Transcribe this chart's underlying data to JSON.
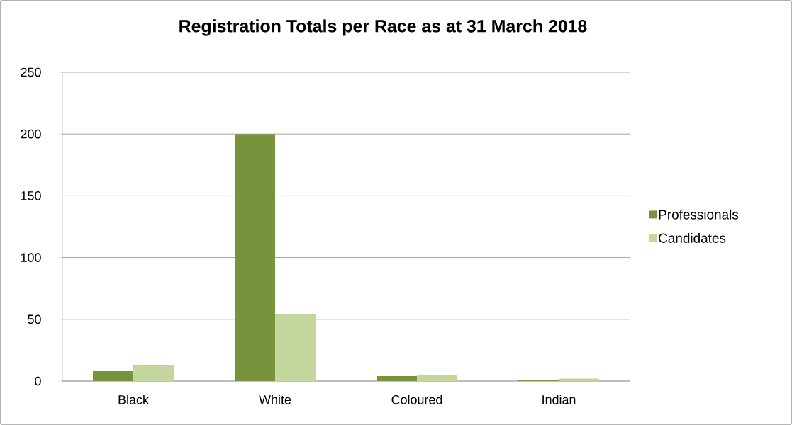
{
  "chart_data": {
    "type": "bar",
    "title": "Registration Totals per Race as at  31 March 2018",
    "categories": [
      "Black",
      "White",
      "Coloured",
      "Indian"
    ],
    "series": [
      {
        "name": "Professionals",
        "color": "#77933c",
        "values": [
          8,
          200,
          4,
          1
        ]
      },
      {
        "name": "Candidates",
        "color": "#c3d69b",
        "values": [
          13,
          54,
          5,
          2
        ]
      }
    ],
    "ylim": [
      0,
      250
    ],
    "yticks": [
      0,
      50,
      100,
      150,
      200,
      250
    ],
    "grid": "y",
    "legend": "right"
  }
}
